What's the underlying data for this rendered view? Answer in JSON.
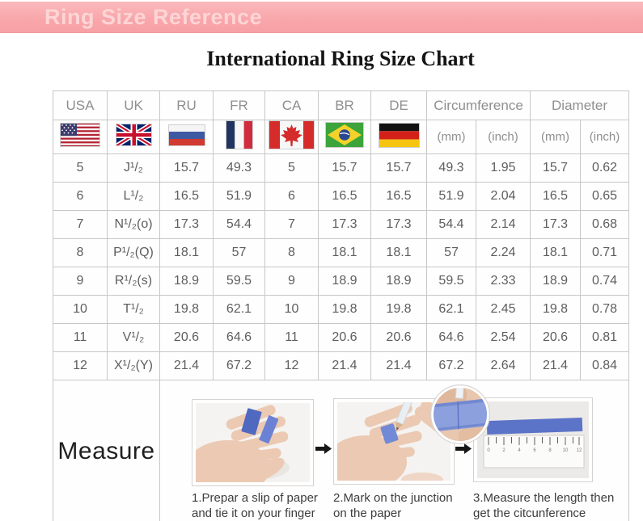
{
  "banner": {
    "title": "Ring Size Reference"
  },
  "page_title": "International Ring Size Chart",
  "table": {
    "columns": [
      "USA",
      "UK",
      "RU",
      "FR",
      "CA",
      "BR",
      "DE"
    ],
    "circumference_label": "Circumference",
    "diameter_label": "Diameter",
    "unit_mm": "(mm)",
    "unit_inch": "(inch)",
    "flag_icons": [
      "usa-flag",
      "uk-flag",
      "russia-flag",
      "france-flag",
      "canada-flag",
      "brazil-flag",
      "germany-flag"
    ],
    "rows": [
      {
        "usa": "5",
        "uk": "J¹/₂",
        "ru": "15.7",
        "fr": "49.3",
        "ca": "5",
        "br": "15.7",
        "de": "15.7",
        "circ_mm": "49.3",
        "circ_inch": "1.95",
        "dia_mm": "15.7",
        "dia_inch": "0.62"
      },
      {
        "usa": "6",
        "uk": "L¹/₂",
        "ru": "16.5",
        "fr": "51.9",
        "ca": "6",
        "br": "16.5",
        "de": "16.5",
        "circ_mm": "51.9",
        "circ_inch": "2.04",
        "dia_mm": "16.5",
        "dia_inch": "0.65"
      },
      {
        "usa": "7",
        "uk": "N¹/₂(o)",
        "ru": "17.3",
        "fr": "54.4",
        "ca": "7",
        "br": "17.3",
        "de": "17.3",
        "circ_mm": "54.4",
        "circ_inch": "2.14",
        "dia_mm": "17.3",
        "dia_inch": "0.68"
      },
      {
        "usa": "8",
        "uk": "P¹/₂(Q)",
        "ru": "18.1",
        "fr": "57",
        "ca": "8",
        "br": "18.1",
        "de": "18.1",
        "circ_mm": "57",
        "circ_inch": "2.24",
        "dia_mm": "18.1",
        "dia_inch": "0.71"
      },
      {
        "usa": "9",
        "uk": "R¹/₂(s)",
        "ru": "18.9",
        "fr": "59.5",
        "ca": "9",
        "br": "18.9",
        "de": "18.9",
        "circ_mm": "59.5",
        "circ_inch": "2.33",
        "dia_mm": "18.9",
        "dia_inch": "0.74"
      },
      {
        "usa": "10",
        "uk": "T¹/₂",
        "ru": "19.8",
        "fr": "62.1",
        "ca": "10",
        "br": "19.8",
        "de": "19.8",
        "circ_mm": "62.1",
        "circ_inch": "2.45",
        "dia_mm": "19.8",
        "dia_inch": "0.78"
      },
      {
        "usa": "11",
        "uk": "V¹/₂",
        "ru": "20.6",
        "fr": "64.6",
        "ca": "11",
        "br": "20.6",
        "de": "20.6",
        "circ_mm": "64.6",
        "circ_inch": "2.54",
        "dia_mm": "20.6",
        "dia_inch": "0.81"
      },
      {
        "usa": "12",
        "uk": "X¹/₂(Y)",
        "ru": "21.4",
        "fr": "67.2",
        "ca": "12",
        "br": "21.4",
        "de": "21.4",
        "circ_mm": "67.2",
        "circ_inch": "2.64",
        "dia_mm": "21.4",
        "dia_inch": "0.84"
      }
    ]
  },
  "measure": {
    "label": "Measure",
    "arrow_icon": "right-arrow",
    "steps": [
      {
        "caption": "1.Prepar a slip of paper and tie it on your finger"
      },
      {
        "caption": "2.Mark on the junction on the paper"
      },
      {
        "caption": "3.Measure the length then get the citcunference"
      }
    ]
  },
  "colors": {
    "banner_bg": "#f8a7aa",
    "banner_text": "#fdd5d6",
    "table_border": "#c7c7c7",
    "header_text": "#8f8f8f",
    "cell_text": "#5e5e5e",
    "paper_blue": "#5b74c8"
  }
}
